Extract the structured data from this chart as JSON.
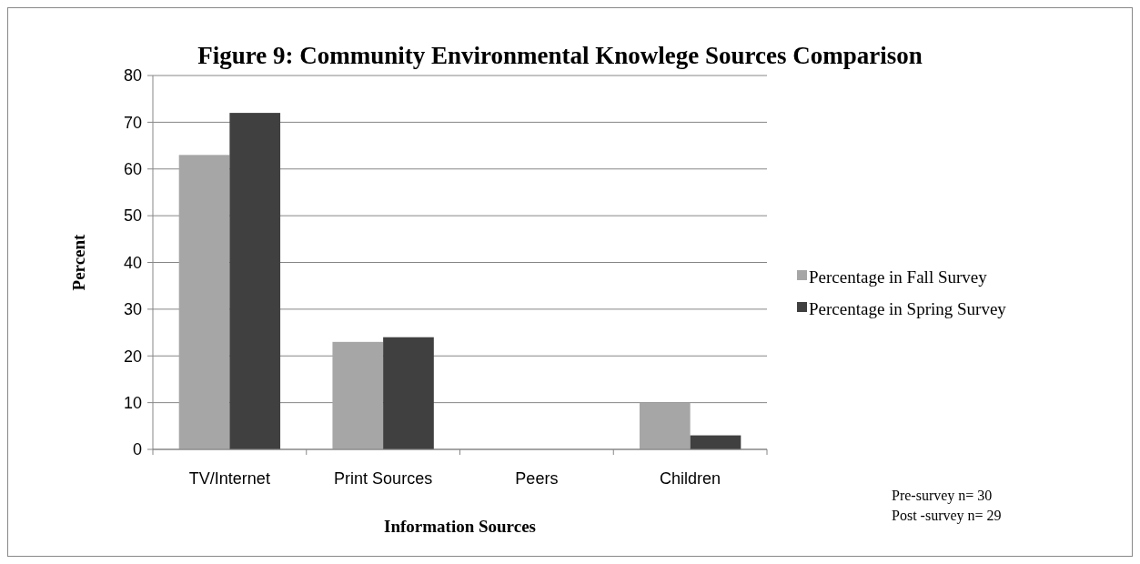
{
  "chart_data": {
    "type": "bar",
    "title": "Figure 9: Community Environmental Knowlege Sources Comparison",
    "xlabel": "Information Sources",
    "ylabel": "Percent",
    "categories": [
      "TV/Internet",
      "Print Sources",
      "Peers",
      "Children"
    ],
    "series": [
      {
        "name": "Percentage in Fall Survey",
        "color": "#a6a6a6",
        "values": [
          63,
          23,
          0,
          10
        ]
      },
      {
        "name": "Percentage in Spring Survey",
        "color": "#404040",
        "values": [
          72,
          24,
          0,
          3
        ]
      }
    ],
    "ylim": [
      0,
      80
    ],
    "yticks": [
      0,
      10,
      20,
      30,
      40,
      50,
      60,
      70,
      80
    ],
    "grid": "y",
    "legend": "right",
    "annotations": [
      "Pre-survey  n= 30",
      "Post -survey n= 29"
    ]
  }
}
